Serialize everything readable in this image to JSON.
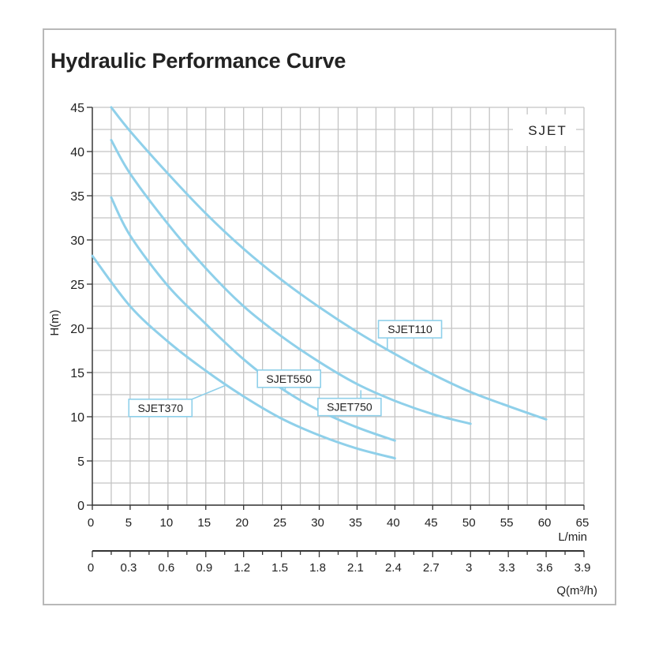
{
  "chart_data": {
    "type": "line",
    "title": "Hydraulic Performance Curve",
    "model_label": "SJET",
    "ylabel": "H(m)",
    "xlabel": "L/min",
    "x2label": "Q(m³/h)",
    "xlim": [
      0,
      65
    ],
    "ylim": [
      0,
      45
    ],
    "x_ticks": [
      "0",
      "5",
      "10",
      "15",
      "20",
      "25",
      "30",
      "35",
      "40",
      "45",
      "50",
      "55",
      "60",
      "65"
    ],
    "y_ticks": [
      "0",
      "5",
      "10",
      "15",
      "20",
      "25",
      "30",
      "35",
      "40",
      "45"
    ],
    "x2_ticks": [
      "0",
      "0.3",
      "0.6",
      "0.9",
      "1.2",
      "1.5",
      "1.8",
      "2.1",
      "2.4",
      "2.7",
      "3",
      "3.3",
      "3.6",
      "3.9"
    ],
    "grid": true,
    "line_color": "#8fd0ea",
    "series": [
      {
        "name": "SJET370",
        "x": [
          0,
          5,
          10,
          15,
          20,
          25,
          30,
          35,
          40
        ],
        "y": [
          28.2,
          22.5,
          18.5,
          15.2,
          12.3,
          9.8,
          7.9,
          6.4,
          5.3
        ]
      },
      {
        "name": "SJET550",
        "x": [
          2.5,
          5,
          10,
          15,
          20,
          25,
          30,
          35,
          40
        ],
        "y": [
          34.8,
          30.5,
          24.8,
          20.5,
          16.5,
          13.2,
          10.7,
          8.8,
          7.3
        ]
      },
      {
        "name": "SJET750",
        "x": [
          2.5,
          5,
          10,
          15,
          20,
          25,
          30,
          35,
          40,
          45,
          50
        ],
        "y": [
          41.3,
          37.5,
          31.8,
          26.8,
          22.5,
          19.1,
          16.2,
          13.7,
          11.8,
          10.3,
          9.2
        ]
      },
      {
        "name": "SJET110",
        "x": [
          2.5,
          5,
          10,
          15,
          20,
          25,
          30,
          35,
          40,
          45,
          50,
          55,
          60
        ],
        "y": [
          45.0,
          42.3,
          37.5,
          33.0,
          29.0,
          25.5,
          22.4,
          19.6,
          17.1,
          14.8,
          12.8,
          11.2,
          9.7
        ]
      }
    ],
    "annotations": [
      {
        "text": "SJET370",
        "series": "SJET370",
        "point_x": 17.5,
        "point_y": 13.5,
        "label_x": 9,
        "label_y": 11
      },
      {
        "text": "SJET550",
        "series": "SJET550",
        "point_x": 25.5,
        "point_y": 12.8,
        "label_x": 26,
        "label_y": 14.3
      },
      {
        "text": "SJET750",
        "series": "SJET750",
        "point_x": 35.5,
        "point_y": 13.0,
        "label_x": 34,
        "label_y": 11.1
      },
      {
        "text": "SJET110",
        "series": "SJET110",
        "point_x": 39,
        "point_y": 17.5,
        "label_x": 42,
        "label_y": 19.9
      }
    ]
  }
}
